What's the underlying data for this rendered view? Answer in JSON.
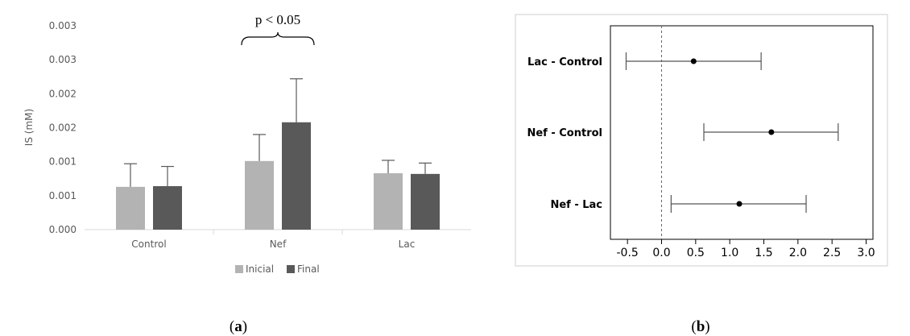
{
  "chart_data": [
    {
      "panel": "a",
      "type": "bar",
      "ylabel": "IS (mM)",
      "yticks": [
        "0.000",
        "0.001",
        "0.001",
        "0.002",
        "0.002",
        "0.003",
        "0.003"
      ],
      "ylim": [
        0,
        0.003
      ],
      "categories": [
        "Control",
        "Nef",
        "Lac"
      ],
      "series": [
        {
          "name": "Inicial",
          "color": "#b3b3b3",
          "values": [
            0.00063,
            0.00101,
            0.00083
          ],
          "errors": [
            0.00034,
            0.00039,
            0.00019
          ]
        },
        {
          "name": "Final",
          "color": "#595959",
          "values": [
            0.00064,
            0.00158,
            0.00082
          ],
          "errors": [
            0.00029,
            0.00064,
            0.00016
          ]
        }
      ],
      "legend": "bottom",
      "grid": false,
      "annotation": {
        "text": "p < 0.05",
        "category": "Nef"
      }
    },
    {
      "panel": "b",
      "type": "scatter",
      "categories": [
        "Lac - Control",
        "Nef - Control",
        "Nef - Lac"
      ],
      "estimates": [
        0.47,
        1.61,
        1.14
      ],
      "ci_low": [
        -0.52,
        0.62,
        0.14
      ],
      "ci_high": [
        1.46,
        2.59,
        2.12
      ],
      "xticks": [
        "-0.5",
        "0.0",
        "0.5",
        "1.0",
        "1.5",
        "2.0",
        "2.5",
        "3.0"
      ],
      "xlim": [
        -0.75,
        3.1
      ],
      "reference_line": 0,
      "grid": false
    }
  ],
  "labels": {
    "a": "a",
    "b": "b"
  }
}
